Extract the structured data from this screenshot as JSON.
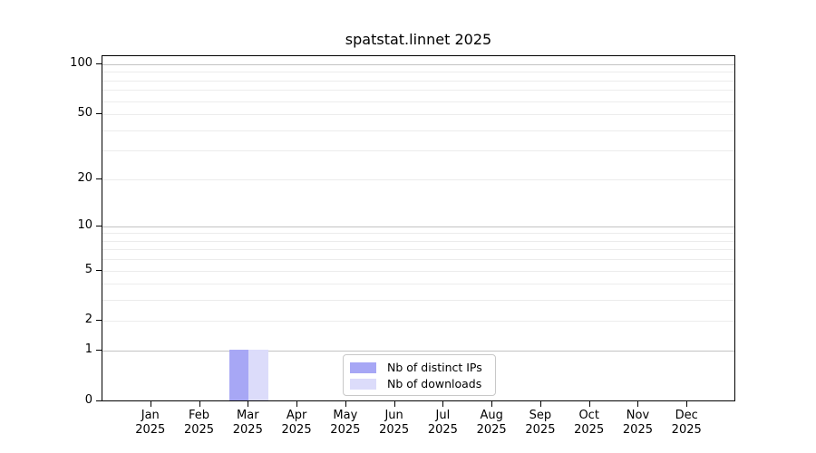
{
  "chart_data": {
    "type": "bar",
    "title": "spatstat.linnet 2025",
    "categories": [
      "Jan 2025",
      "Feb 2025",
      "Mar 2025",
      "Apr 2025",
      "May 2025",
      "Jun 2025",
      "Jul 2025",
      "Aug 2025",
      "Sep 2025",
      "Oct 2025",
      "Nov 2025",
      "Dec 2025"
    ],
    "series": [
      {
        "name": "Nb of distinct IPs",
        "color": "#a7a7f5",
        "values": [
          0,
          0,
          1,
          0,
          0,
          0,
          0,
          0,
          0,
          0,
          0,
          0
        ]
      },
      {
        "name": "Nb of downloads",
        "color": "#dcdcfa",
        "values": [
          0,
          0,
          1,
          0,
          0,
          0,
          0,
          0,
          0,
          0,
          0,
          0
        ]
      }
    ],
    "y_axis": {
      "scale": "log10(1+v)",
      "ticks": [
        0,
        1,
        2,
        5,
        10,
        20,
        50,
        100
      ],
      "range_decades": 2.058,
      "gridlines_minor": [
        2,
        3,
        4,
        5,
        6,
        7,
        8,
        9,
        20,
        30,
        40,
        50,
        60,
        70,
        80,
        90
      ],
      "gridlines_major": [
        1,
        10,
        100
      ]
    },
    "legend": {
      "position": "lower center"
    },
    "colors": {
      "grid_minor": "#ececec",
      "grid_major": "#c3c3c3",
      "spine": "#000000",
      "text": "#000000",
      "legend_border": "#c8c8c8"
    },
    "grid": "horizontal"
  }
}
